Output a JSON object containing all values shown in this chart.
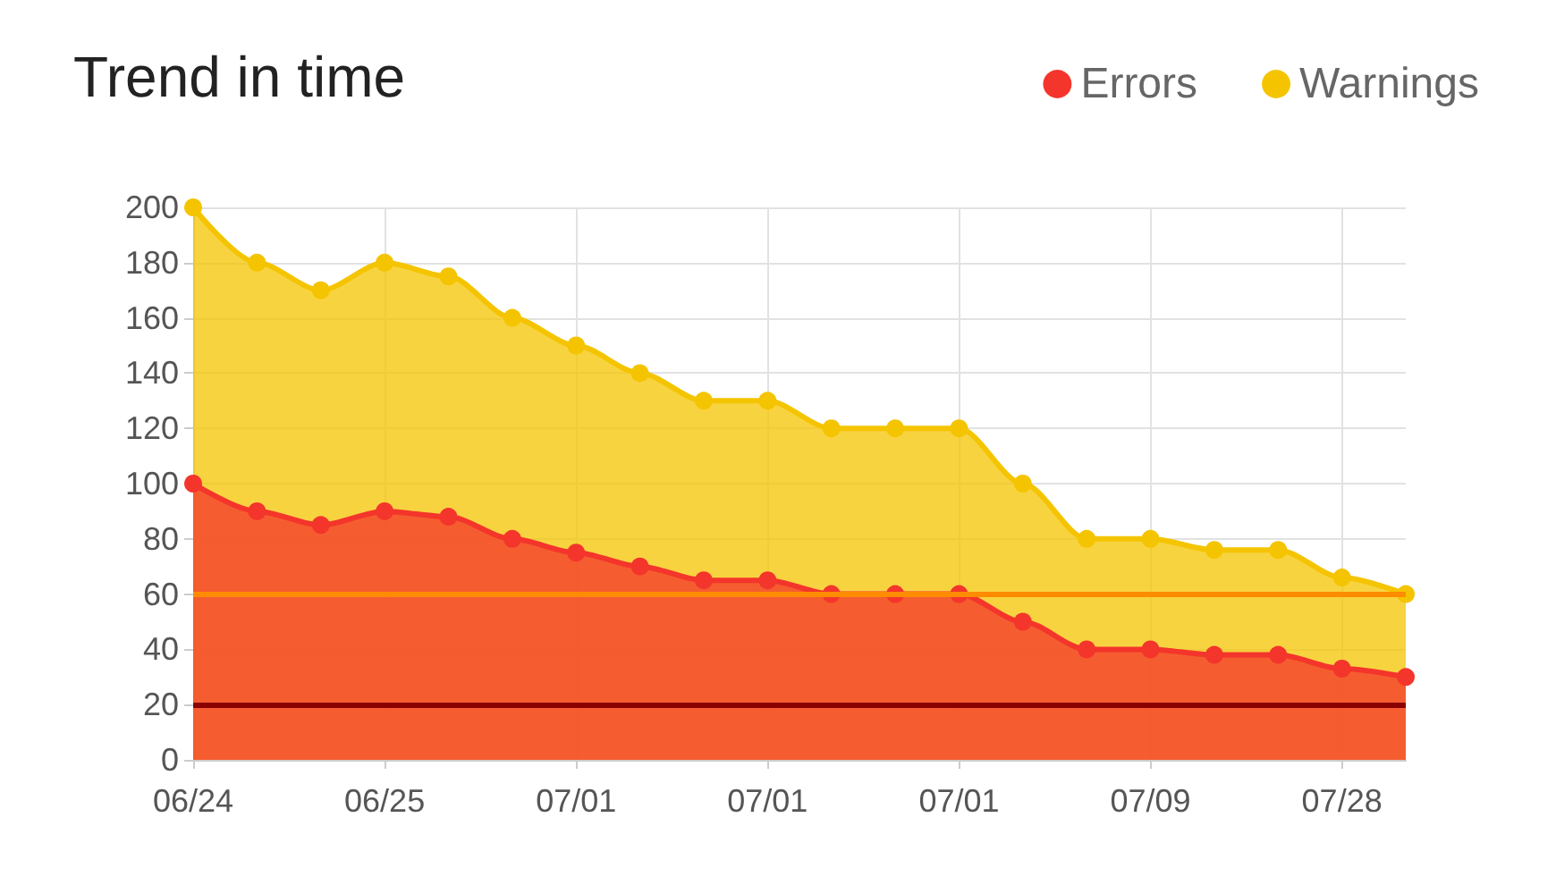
{
  "chart_data": {
    "type": "area",
    "title": "Trend in time",
    "categories": [
      "06/24",
      null,
      null,
      "06/25",
      null,
      null,
      "07/01",
      null,
      null,
      "07/01",
      null,
      null,
      "07/01",
      null,
      null,
      "07/09",
      null,
      null,
      "07/28",
      null
    ],
    "series": [
      {
        "name": "Warnings",
        "color": "#f5c400",
        "values": [
          200,
          180,
          170,
          180,
          175,
          160,
          150,
          140,
          130,
          130,
          120,
          120,
          120,
          100,
          80,
          80,
          76,
          76,
          66,
          60
        ]
      },
      {
        "name": "Errors",
        "color": "#f4352b",
        "values": [
          100,
          90,
          85,
          90,
          88,
          80,
          75,
          70,
          65,
          65,
          60,
          60,
          60,
          50,
          40,
          40,
          38,
          38,
          33,
          30
        ]
      }
    ],
    "ref_lines": [
      {
        "axis": "y",
        "value": 60,
        "color": "#ff8c00"
      },
      {
        "axis": "y",
        "value": 20,
        "color": "#8b0000"
      }
    ],
    "ylim": [
      0,
      200
    ],
    "yticks": [
      0,
      20,
      40,
      60,
      80,
      100,
      120,
      140,
      160,
      180,
      200
    ],
    "grid": true,
    "legend": "top right",
    "marker": "circle",
    "line_style": "solid"
  }
}
